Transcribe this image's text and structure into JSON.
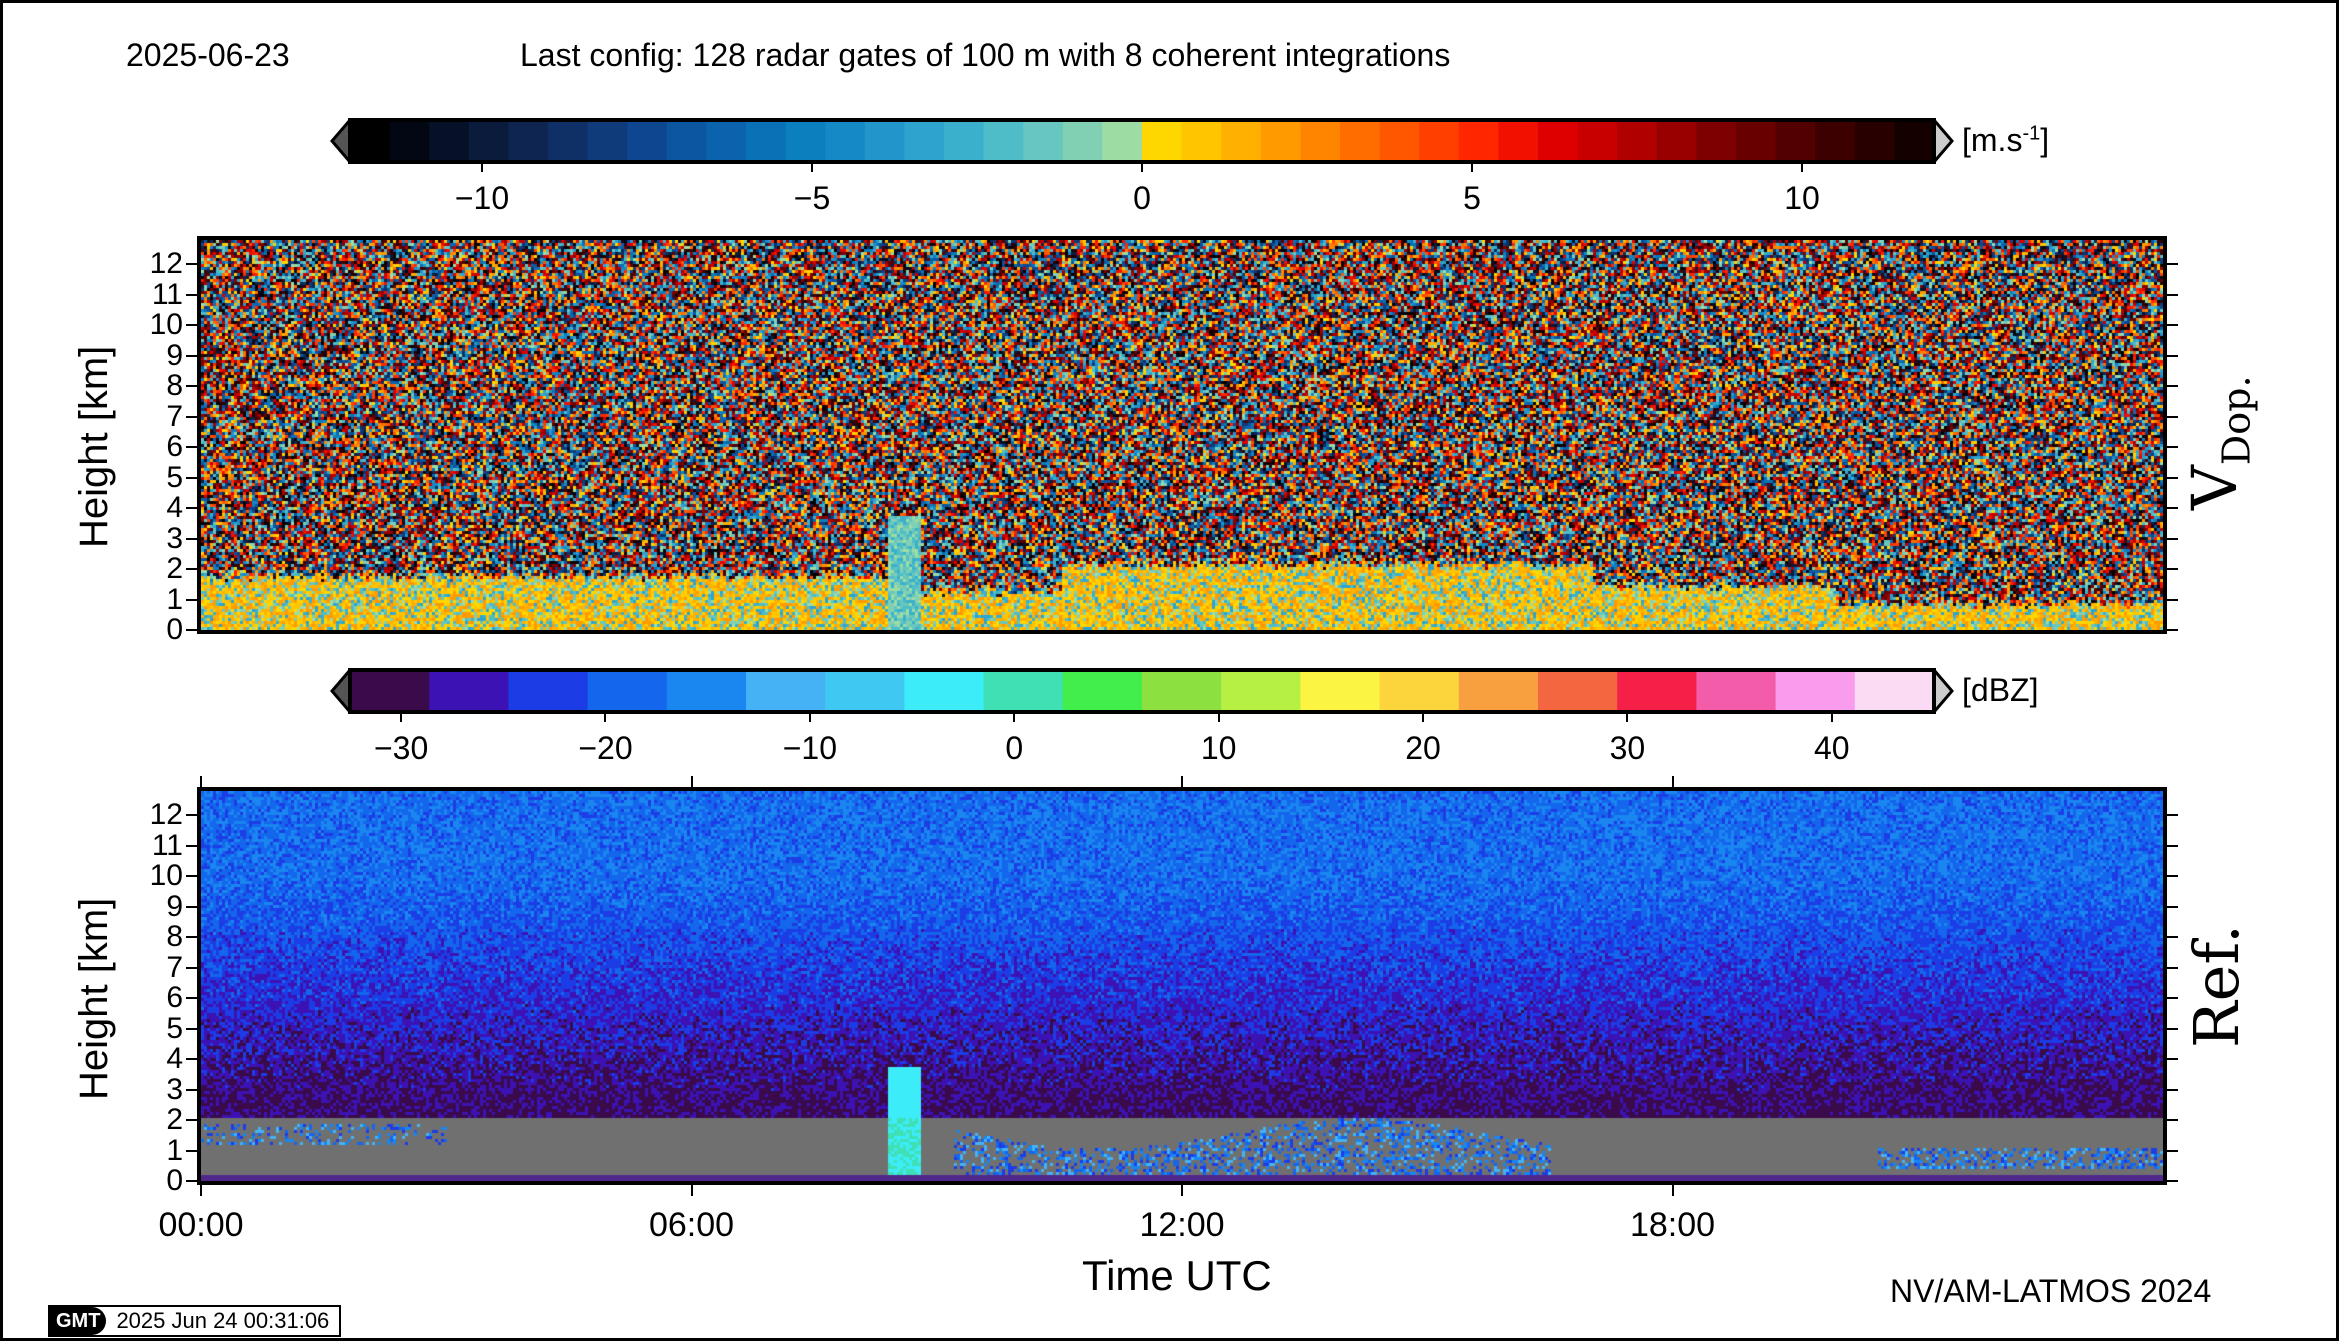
{
  "header": {
    "date": "2025-06-23",
    "config": "Last config: 128 radar gates of 100 m with 8 coherent integrations"
  },
  "footer": {
    "credit": "NV/AM-LATMOS 2024",
    "gmt_logo": "GMT",
    "gmt_timestamp": "2025 Jun 24 00:31:06"
  },
  "chart_data": [
    {
      "type": "heatmap",
      "panel_label_main": "V",
      "panel_label_sub": "Dop.",
      "ylabel": "Height [km]",
      "ylim": [
        0,
        12.8
      ],
      "yticks": [
        "0",
        "1",
        "2",
        "3",
        "4",
        "5",
        "6",
        "7",
        "8",
        "9",
        "10",
        "11",
        "12"
      ],
      "xlim_hours": [
        0,
        24
      ],
      "colorbar": {
        "unit_base": "[m.s",
        "unit_exp": "-1",
        "unit_close": "]",
        "range": [
          -12,
          12
        ],
        "ticks": [
          "−10",
          "−5",
          "0",
          "5",
          "10"
        ],
        "tick_values": [
          -10,
          -5,
          0,
          5,
          10
        ],
        "colors": [
          "#000000",
          "#030613",
          "#061027",
          "#0a1b3c",
          "#0d2550",
          "#0f3066",
          "#0f3b7b",
          "#0e4790",
          "#0c559f",
          "#0a63ac",
          "#0a71b7",
          "#0c7fbf",
          "#1489c6",
          "#2296cb",
          "#2ea3cd",
          "#3ab0cc",
          "#4ebdc8",
          "#67c6bf",
          "#82d0b3",
          "#9ddda4",
          "#ffd700",
          "#ffc600",
          "#ffb000",
          "#ff9a00",
          "#ff8500",
          "#ff6d00",
          "#ff5600",
          "#ff3f00",
          "#ff2600",
          "#f21000",
          "#de0000",
          "#c80000",
          "#b00000",
          "#980000",
          "#7f0000",
          "#680000",
          "#520000",
          "#3d0000",
          "#290000",
          "#150000"
        ]
      }
    },
    {
      "type": "heatmap",
      "panel_label_main": "Ref.",
      "ylabel": "Height [km]",
      "xlabel": "Time UTC",
      "ylim": [
        0,
        12.8
      ],
      "yticks": [
        "0",
        "1",
        "2",
        "3",
        "4",
        "5",
        "6",
        "7",
        "8",
        "9",
        "10",
        "11",
        "12"
      ],
      "xlim_hours": [
        0,
        24
      ],
      "xticks": [
        "00:00",
        "06:00",
        "12:00",
        "18:00"
      ],
      "xtick_hours": [
        0,
        6,
        12,
        18
      ],
      "colorbar": {
        "unit": "[dBZ]",
        "range": [
          -32.5,
          45
        ],
        "ticks": [
          "−30",
          "−20",
          "−10",
          "0",
          "10",
          "20",
          "30",
          "40"
        ],
        "tick_values": [
          -30,
          -20,
          -10,
          0,
          10,
          20,
          30,
          40
        ],
        "colors": [
          "#3a0a4a",
          "#3c12b4",
          "#1c3ce6",
          "#1466ec",
          "#1a86f0",
          "#44b2f4",
          "#3ec8f2",
          "#3cecf8",
          "#3ee0b4",
          "#42ee4c",
          "#8ce040",
          "#b6f042",
          "#fcf442",
          "#fcd43c",
          "#f8a040",
          "#f46640",
          "#f42048",
          "#f25ca8",
          "#fa9cee",
          "#f9dcf4"
        ]
      }
    }
  ]
}
